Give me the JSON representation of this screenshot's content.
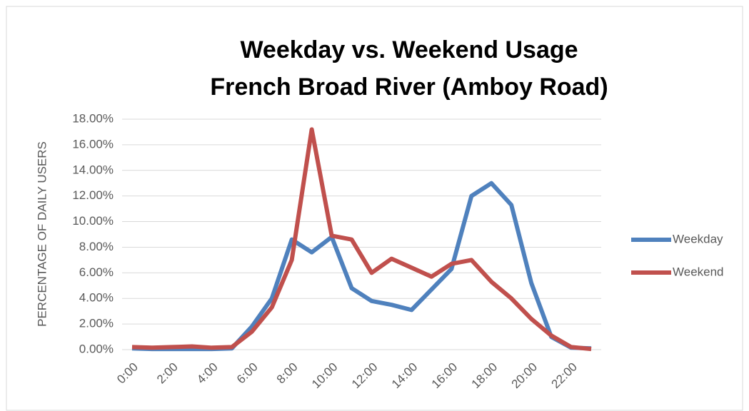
{
  "chart_data": {
    "type": "line",
    "title": [
      "Weekday vs. Weekend Usage",
      "French Broad River (Amboy Road)"
    ],
    "y_label": "PERCENTAGE OF DAILY USERS",
    "categories": [
      "0:00",
      null,
      "2:00",
      null,
      "4:00",
      null,
      "6:00",
      null,
      "8:00",
      null,
      "10:00",
      null,
      "12:00",
      null,
      "14:00",
      null,
      "16:00",
      null,
      "18:00",
      null,
      "20:00",
      null,
      "22:00",
      null
    ],
    "series": [
      {
        "name": "Weekday",
        "color": "#4f81bd",
        "values": [
          0.1,
          0.05,
          0.05,
          0.05,
          0.05,
          0.1,
          1.8,
          4.0,
          8.6,
          7.6,
          8.8,
          4.8,
          3.8,
          3.5,
          3.1,
          4.7,
          6.3,
          12.0,
          13.0,
          11.3,
          5.2,
          1.0,
          0.15,
          0.1
        ]
      },
      {
        "name": "Weekend",
        "color": "#c0504d",
        "values": [
          0.2,
          0.15,
          0.2,
          0.25,
          0.15,
          0.2,
          1.4,
          3.3,
          7.0,
          17.2,
          8.9,
          8.6,
          6.0,
          7.1,
          6.4,
          5.7,
          6.7,
          7.0,
          5.3,
          4.0,
          2.4,
          1.1,
          0.2,
          0.05
        ]
      }
    ],
    "ylim": [
      0,
      18
    ],
    "yticks": [
      {
        "value": 0,
        "label": "0.00%"
      },
      {
        "value": 2,
        "label": "2.00%"
      },
      {
        "value": 4,
        "label": "4.00%"
      },
      {
        "value": 6,
        "label": "6.00%"
      },
      {
        "value": 8,
        "label": "8.00%"
      },
      {
        "value": 10,
        "label": "10.00%"
      },
      {
        "value": 12,
        "label": "12.00%"
      },
      {
        "value": 14,
        "label": "14.00%"
      },
      {
        "value": 16,
        "label": "16.00%"
      },
      {
        "value": 18,
        "label": "18.00%"
      }
    ],
    "grid": true,
    "legend": "right"
  }
}
